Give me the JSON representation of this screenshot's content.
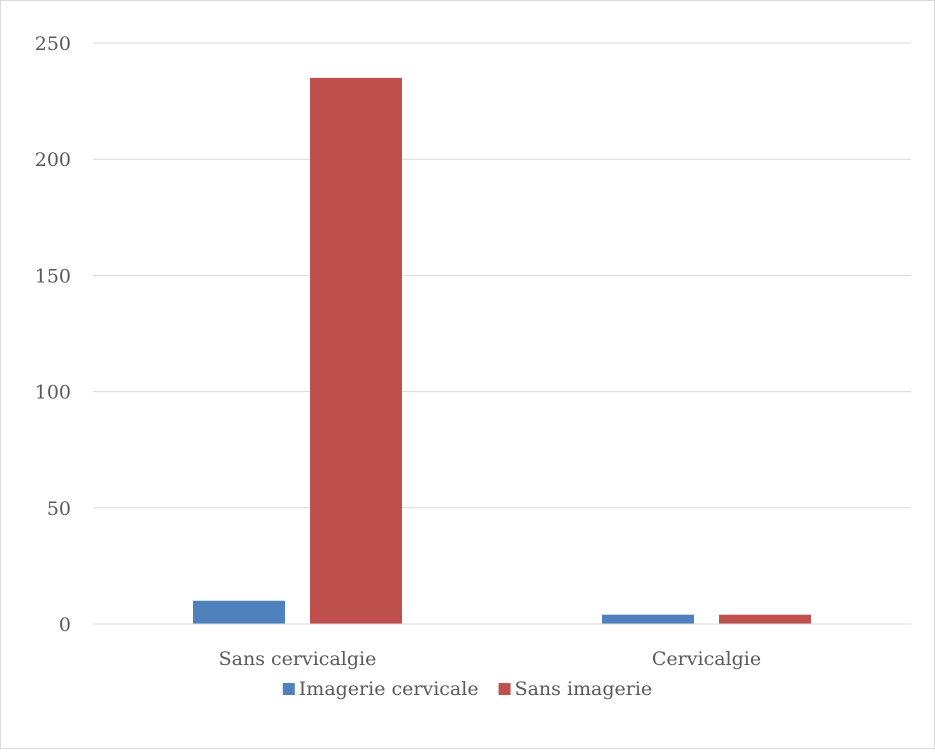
{
  "chart_data": {
    "type": "bar",
    "categories": [
      "Sans cervicalgie",
      "Cervicalgie"
    ],
    "series": [
      {
        "name": "Imagerie cervicale",
        "values": [
          10,
          4
        ],
        "color": "#4f81bd"
      },
      {
        "name": "Sans imagerie",
        "values": [
          235,
          4
        ],
        "color": "#c0504d"
      }
    ],
    "ylim": [
      0,
      250
    ],
    "yticks": [
      0,
      50,
      100,
      150,
      200,
      250
    ],
    "grid": true,
    "legend_position": "bottom",
    "title": "",
    "xlabel": "",
    "ylabel": ""
  }
}
